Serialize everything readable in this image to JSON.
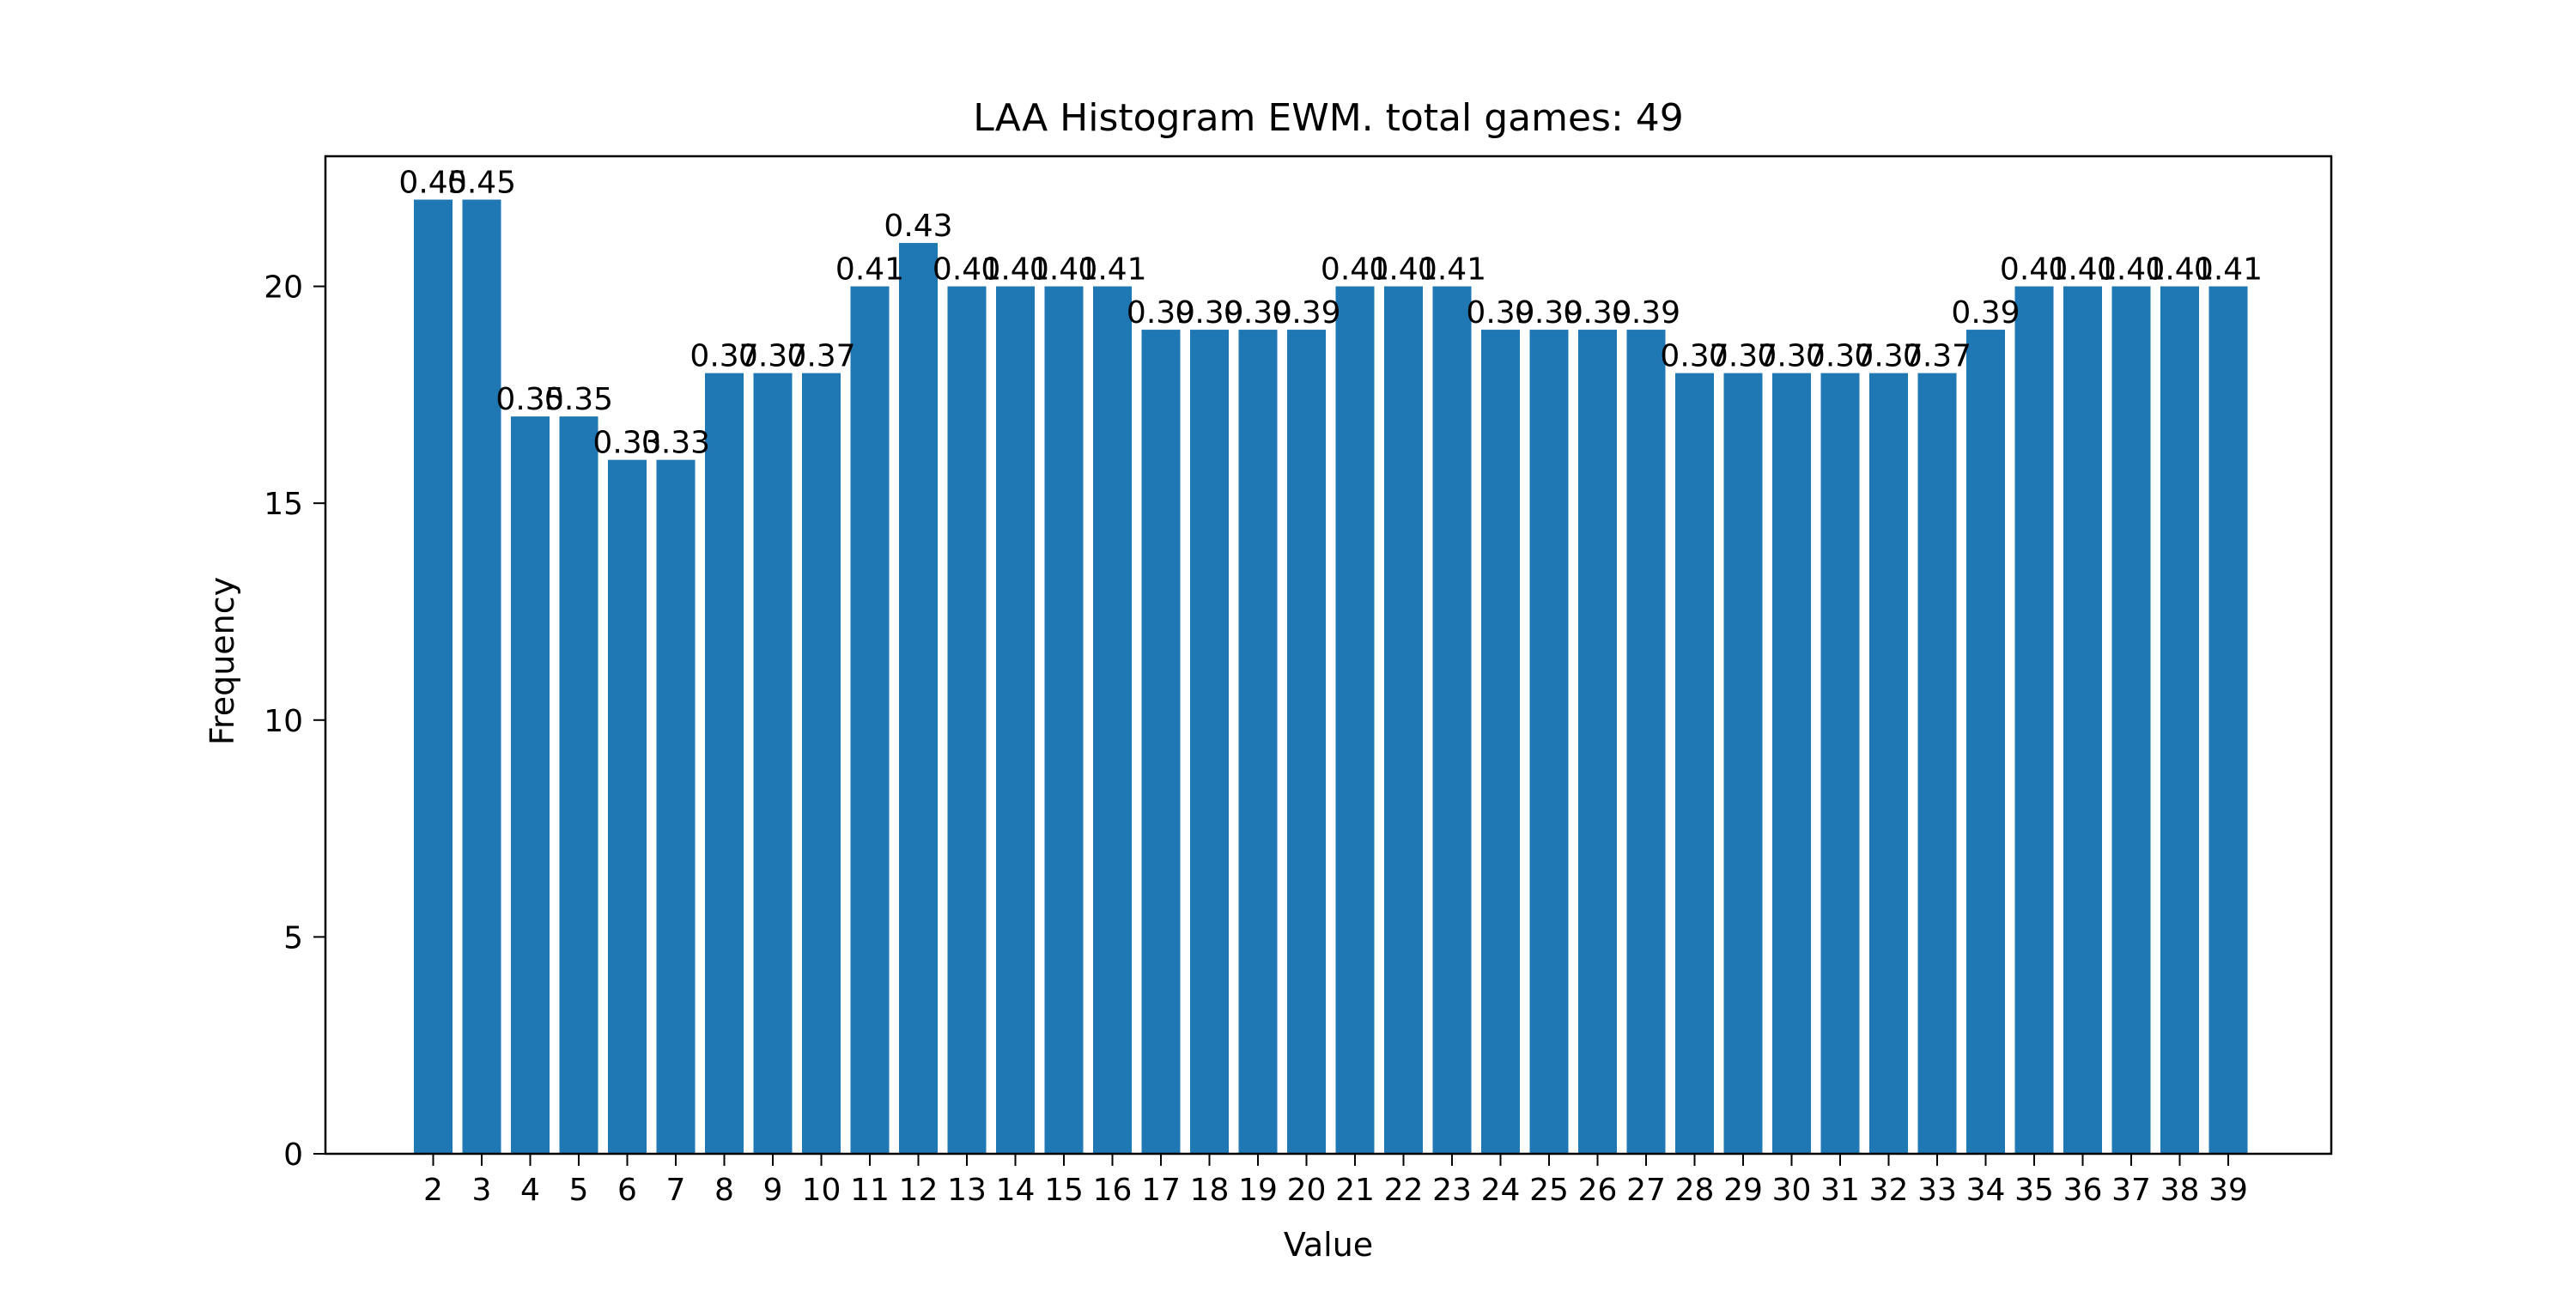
{
  "chart_data": {
    "type": "bar",
    "title": "LAA Histogram EWM. total games: 49",
    "xlabel": "Value",
    "ylabel": "Frequency",
    "categories": [
      "2",
      "3",
      "4",
      "5",
      "6",
      "7",
      "8",
      "9",
      "10",
      "11",
      "12",
      "13",
      "14",
      "15",
      "16",
      "17",
      "18",
      "19",
      "20",
      "21",
      "22",
      "23",
      "24",
      "25",
      "26",
      "27",
      "28",
      "29",
      "30",
      "31",
      "32",
      "33",
      "34",
      "35",
      "36",
      "37",
      "38",
      "39"
    ],
    "values": [
      22,
      22,
      17,
      17,
      16,
      16,
      18,
      18,
      18,
      20,
      21,
      20,
      20,
      20,
      20,
      19,
      19,
      19,
      19,
      20,
      20,
      20,
      19,
      19,
      19,
      19,
      18,
      18,
      18,
      18,
      18,
      18,
      19,
      20,
      20,
      20,
      20,
      20
    ],
    "bar_labels": [
      "0.45",
      "0.45",
      "0.35",
      "0.35",
      "0.33",
      "0.33",
      "0.37",
      "0.37",
      "0.37",
      "0.41",
      "0.43",
      "0.41",
      "0.41",
      "0.41",
      "0.41",
      "0.39",
      "0.39",
      "0.39",
      "0.39",
      "0.41",
      "0.41",
      "0.41",
      "0.39",
      "0.39",
      "0.39",
      "0.39",
      "0.37",
      "0.37",
      "0.37",
      "0.37",
      "0.37",
      "0.37",
      "0.39",
      "0.41",
      "0.41",
      "0.41",
      "0.41",
      "0.41"
    ],
    "ylim": [
      0,
      23
    ],
    "yticks": [
      0,
      5,
      10,
      15,
      20
    ],
    "bar_color": "#1f77b4",
    "grid": false,
    "legend": "none"
  }
}
